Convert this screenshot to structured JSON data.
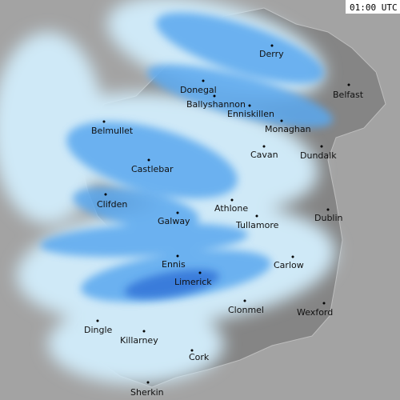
{
  "timestamp": "01:00 UTC",
  "places": [
    {
      "label": "Derry"
    },
    {
      "label": "Donegal"
    },
    {
      "label": "Ballyshannon"
    },
    {
      "label": "Enniskillen"
    },
    {
      "label": "Belfast"
    },
    {
      "label": "Monaghan"
    },
    {
      "label": "Belmullet"
    },
    {
      "label": "Cavan"
    },
    {
      "label": "Dundalk"
    },
    {
      "label": "Castlebar"
    },
    {
      "label": "Clifden"
    },
    {
      "label": "Athlone"
    },
    {
      "label": "Galway"
    },
    {
      "label": "Dublin"
    },
    {
      "label": "Tullamore"
    },
    {
      "label": "Ennis"
    },
    {
      "label": "Carlow"
    },
    {
      "label": "Limerick"
    },
    {
      "label": "Clonmel"
    },
    {
      "label": "Wexford"
    },
    {
      "label": "Dingle"
    },
    {
      "label": "Killarney"
    },
    {
      "label": "Cork"
    },
    {
      "label": "Sherkin"
    }
  ]
}
